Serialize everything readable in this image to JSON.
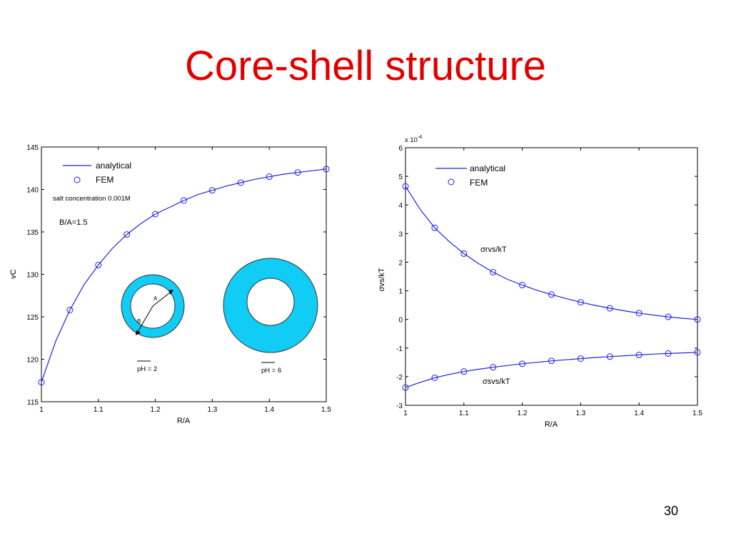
{
  "slide": {
    "title": "Core-shell structure",
    "title_color": "#e00000",
    "page_number": "30"
  },
  "colors": {
    "line": "#2222dd",
    "marker": "#2222dd",
    "shell_fill": "#11ccf4"
  },
  "chart_data": [
    {
      "type": "line",
      "xlabel": "R/A",
      "ylabel": "vC",
      "xlim": [
        1,
        1.5
      ],
      "ylim": [
        115,
        145
      ],
      "xticks": [
        "1",
        "1.1",
        "1.2",
        "1.3",
        "1.4",
        "1.5"
      ],
      "yticks": [
        "115",
        "120",
        "125",
        "130",
        "135",
        "140",
        "145"
      ],
      "grid": false,
      "legend": {
        "position": "top-left",
        "entries": [
          "analytical",
          "FEM"
        ]
      },
      "annotations": [
        "salt concentration 0.001M",
        "B/A=1.5"
      ],
      "series": [
        {
          "name": "analytical",
          "style": "line",
          "x": [
            1.0,
            1.025,
            1.05,
            1.075,
            1.1,
            1.125,
            1.15,
            1.175,
            1.2,
            1.225,
            1.25,
            1.275,
            1.3,
            1.325,
            1.35,
            1.375,
            1.4,
            1.425,
            1.45,
            1.475,
            1.5
          ],
          "y": [
            117.3,
            122.1,
            125.8,
            128.8,
            131.1,
            133.1,
            134.7,
            136.0,
            137.1,
            137.9,
            138.7,
            139.4,
            139.9,
            140.4,
            140.8,
            141.2,
            141.5,
            141.8,
            142.0,
            142.2,
            142.4
          ]
        },
        {
          "name": "FEM",
          "style": "markers",
          "x": [
            1.0,
            1.05,
            1.1,
            1.15,
            1.2,
            1.25,
            1.3,
            1.35,
            1.4,
            1.45,
            1.5
          ],
          "y": [
            117.3,
            125.8,
            131.1,
            134.7,
            137.1,
            138.7,
            139.9,
            140.8,
            141.5,
            142.0,
            142.4
          ]
        }
      ],
      "inset": {
        "left_label": "pH = 2",
        "right_label": "pH = 6",
        "arrow_label_a": "A",
        "arrow_label_b": "B"
      }
    },
    {
      "type": "line",
      "xlabel": "R/A",
      "ylabel": "σvs/kT",
      "exponent_label": "x 10",
      "exponent_power": "-4",
      "xlim": [
        1,
        1.5
      ],
      "ylim": [
        -3,
        6
      ],
      "xticks": [
        "1",
        "1.1",
        "1.2",
        "1.3",
        "1.4",
        "1.5"
      ],
      "yticks": [
        "-3",
        "-2",
        "-1",
        "0",
        "1",
        "2",
        "3",
        "4",
        "5",
        "6"
      ],
      "grid": false,
      "legend": {
        "position": "top-left",
        "entries": [
          "analytical",
          "FEM"
        ]
      },
      "curve_labels": {
        "upper": "σrvs/kT",
        "lower": "σsvs/kT"
      },
      "series": [
        {
          "name": "analytical",
          "style": "line",
          "x": [
            1.0,
            1.025,
            1.05,
            1.075,
            1.1,
            1.125,
            1.15,
            1.175,
            1.2,
            1.225,
            1.25,
            1.275,
            1.3,
            1.325,
            1.35,
            1.375,
            1.4,
            1.425,
            1.45,
            1.475,
            1.5
          ],
          "y": [
            4.65,
            3.85,
            3.2,
            2.72,
            2.3,
            1.95,
            1.65,
            1.4,
            1.2,
            1.02,
            0.87,
            0.73,
            0.6,
            0.49,
            0.39,
            0.3,
            0.22,
            0.15,
            0.09,
            0.04,
            0.0
          ]
        },
        {
          "name": "FEM",
          "style": "markers",
          "x": [
            1.0,
            1.05,
            1.1,
            1.15,
            1.2,
            1.25,
            1.3,
            1.35,
            1.4,
            1.45,
            1.5
          ],
          "y": [
            4.65,
            3.2,
            2.3,
            1.65,
            1.2,
            0.87,
            0.6,
            0.39,
            0.22,
            0.09,
            0.0
          ]
        },
        {
          "name": "analytical",
          "style": "line",
          "x": [
            1.0,
            1.025,
            1.05,
            1.075,
            1.1,
            1.125,
            1.15,
            1.175,
            1.2,
            1.225,
            1.25,
            1.275,
            1.3,
            1.325,
            1.35,
            1.375,
            1.4,
            1.425,
            1.45,
            1.475,
            1.5
          ],
          "y": [
            -2.38,
            -2.2,
            -2.04,
            -1.92,
            -1.82,
            -1.74,
            -1.67,
            -1.61,
            -1.55,
            -1.5,
            -1.45,
            -1.41,
            -1.37,
            -1.33,
            -1.3,
            -1.27,
            -1.24,
            -1.21,
            -1.19,
            -1.17,
            -1.15
          ]
        },
        {
          "name": "FEM",
          "style": "markers",
          "x": [
            1.0,
            1.05,
            1.1,
            1.15,
            1.2,
            1.25,
            1.3,
            1.35,
            1.4,
            1.45,
            1.5
          ],
          "y": [
            -2.38,
            -2.04,
            -1.82,
            -1.67,
            -1.55,
            -1.45,
            -1.37,
            -1.3,
            -1.24,
            -1.19,
            -1.15
          ]
        }
      ]
    }
  ]
}
